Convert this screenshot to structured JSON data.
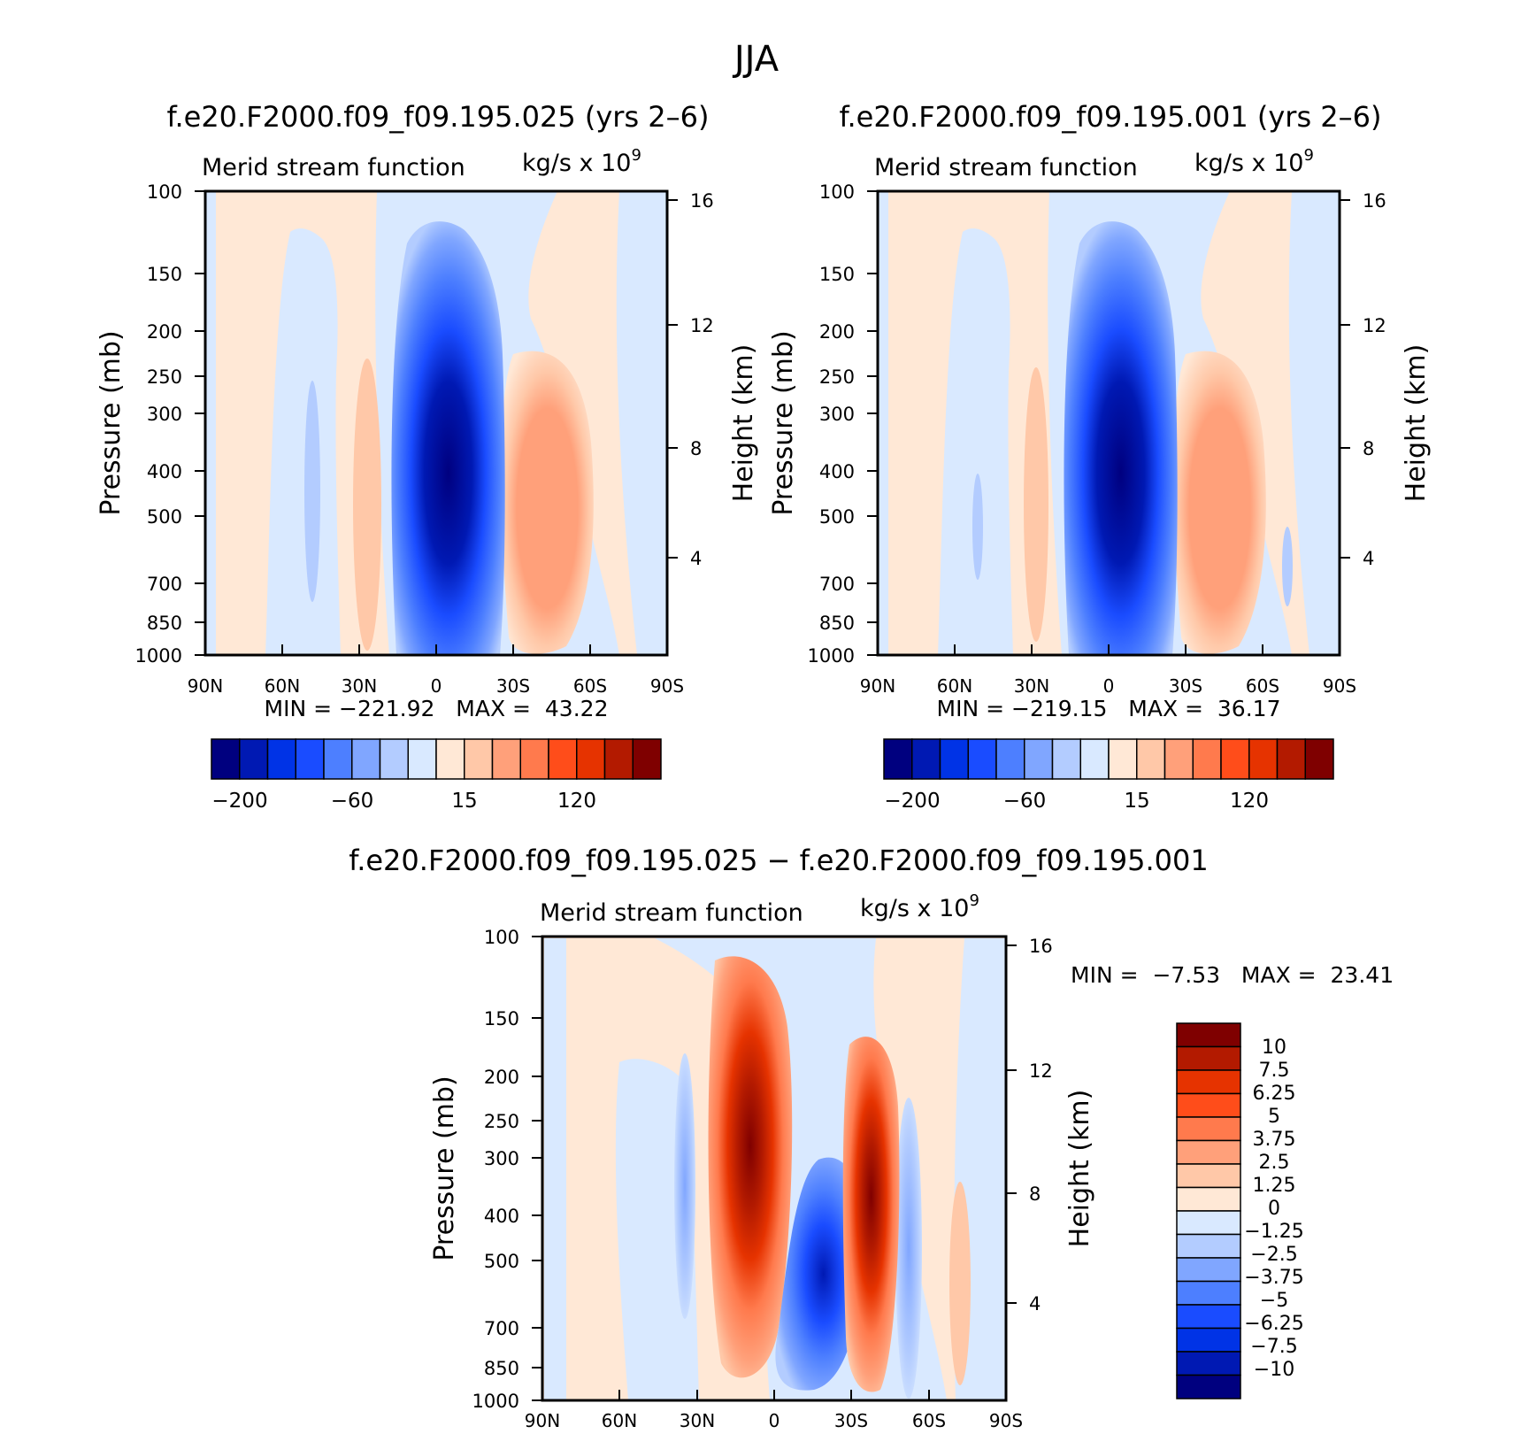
{
  "figure": {
    "title": "JJA"
  },
  "panels": [
    {
      "title": "f.e20.F2000.f09_f09.195.025 (yrs 2–6)",
      "var_label": "Merid stream function",
      "units_label": "kg/s x 10",
      "units_exponent": "9",
      "ylabel": "Pressure (mb)",
      "y2label": "Height (km)",
      "stats": {
        "min_label": "MIN =",
        "min": "−221.92",
        "max_label": "MAX =",
        "max": "43.22"
      }
    },
    {
      "title": "f.e20.F2000.f09_f09.195.001 (yrs 2–6)",
      "var_label": "Merid stream function",
      "units_label": "kg/s x 10",
      "units_exponent": "9",
      "ylabel": "Pressure (mb)",
      "y2label": "Height (km)",
      "stats": {
        "min_label": "MIN =",
        "min": "−219.15",
        "max_label": "MAX =",
        "max": "36.17"
      }
    },
    {
      "title": "f.e20.F2000.f09_f09.195.025 − f.e20.F2000.f09_f09.195.001",
      "var_label": "Merid stream function",
      "units_label": "kg/s x 10",
      "units_exponent": "9",
      "ylabel": "Pressure (mb)",
      "y2label": "Height (km)",
      "stats": {
        "min_label": "MIN =",
        "min": "−7.53",
        "max_label": "MAX =",
        "max": "23.41"
      }
    }
  ],
  "colors": {
    "levels16": [
      "#00007f",
      "#0019b3",
      "#0033e6",
      "#1a4cff",
      "#4d7fff",
      "#80a6ff",
      "#b3ccff",
      "#d9e9ff",
      "#ffe8d6",
      "#ffc8a8",
      "#ffa07a",
      "#ff7a4d",
      "#ff4d1a",
      "#e63300",
      "#b31a00",
      "#7f0000"
    ]
  },
  "chart_data": [
    {
      "type": "heatmap",
      "title": "f.e20.F2000.f09_f09.195.025 (yrs 2–6)",
      "xlabel": "",
      "ylabel": "Pressure (mb)",
      "y2label": "Height (km)",
      "x_ticks": [
        "90N",
        "60N",
        "30N",
        "0",
        "30S",
        "60S",
        "90S"
      ],
      "x_range": [
        90,
        -90
      ],
      "y_ticks": [
        100,
        150,
        200,
        250,
        300,
        400,
        500,
        700,
        850,
        1000
      ],
      "y_scale": "log",
      "y_range": [
        100,
        1000
      ],
      "y2_ticks": [
        4,
        8,
        12,
        16
      ],
      "min": -221.92,
      "max": 43.22,
      "colorbar_labels": [
        "−200",
        "−60",
        "15",
        "120"
      ],
      "cells": [
        {
          "lat": [
            58,
            40
          ],
          "p": [
            130,
            920
          ],
          "v": -20
        },
        {
          "lat": [
            15,
            -15
          ],
          "p": [
            118,
            980
          ],
          "v": -200
        },
        {
          "lat": [
            -20,
            -42
          ],
          "p": [
            200,
            940
          ],
          "v": 40
        },
        {
          "lat": [
            32,
            25
          ],
          "p": [
            250,
            930
          ],
          "v": 10
        },
        {
          "lat": [
            -70,
            -88
          ],
          "p": [
            100,
            1000
          ],
          "v": -10
        }
      ]
    },
    {
      "type": "heatmap",
      "title": "f.e20.F2000.f09_f09.195.001 (yrs 2–6)",
      "xlabel": "",
      "ylabel": "Pressure (mb)",
      "y2label": "Height (km)",
      "x_ticks": [
        "90N",
        "60N",
        "30N",
        "0",
        "30S",
        "60S",
        "90S"
      ],
      "x_range": [
        90,
        -90
      ],
      "y_ticks": [
        100,
        150,
        200,
        250,
        300,
        400,
        500,
        700,
        850,
        1000
      ],
      "y_scale": "log",
      "y_range": [
        100,
        1000
      ],
      "y2_ticks": [
        4,
        8,
        12,
        16
      ],
      "min": -219.15,
      "max": 36.17,
      "colorbar_labels": [
        "−200",
        "−60",
        "15",
        "120"
      ],
      "cells": [
        {
          "lat": [
            58,
            40
          ],
          "p": [
            130,
            920
          ],
          "v": -20
        },
        {
          "lat": [
            15,
            -15
          ],
          "p": [
            118,
            980
          ],
          "v": -200
        },
        {
          "lat": [
            -20,
            -42
          ],
          "p": [
            200,
            940
          ],
          "v": 35
        },
        {
          "lat": [
            32,
            25
          ],
          "p": [
            250,
            930
          ],
          "v": 10
        },
        {
          "lat": [
            -70,
            -88
          ],
          "p": [
            100,
            1000
          ],
          "v": -10
        }
      ]
    },
    {
      "type": "heatmap",
      "title": "f.e20.F2000.f09_f09.195.025 − f.e20.F2000.f09_f09.195.001",
      "xlabel": "",
      "ylabel": "Pressure (mb)",
      "y2label": "Height (km)",
      "x_ticks": [
        "90N",
        "60N",
        "30N",
        "0",
        "30S",
        "60S",
        "90S"
      ],
      "x_range": [
        90,
        -90
      ],
      "y_ticks": [
        100,
        150,
        200,
        250,
        300,
        400,
        500,
        700,
        850,
        1000
      ],
      "y_scale": "log",
      "y_range": [
        100,
        1000
      ],
      "y2_ticks": [
        4,
        8,
        12,
        16
      ],
      "min": -7.53,
      "max": 23.41,
      "colorbar_labels": [
        "10",
        "7.5",
        "6.25",
        "5",
        "3.75",
        "2.5",
        "1.25",
        "0",
        "−1.25",
        "−2.5",
        "−3.75",
        "−5",
        "−6.25",
        "−7.5",
        "−10"
      ],
      "cells": [
        {
          "lat": [
            20,
            5
          ],
          "p": [
            130,
            980
          ],
          "v": 10
        },
        {
          "lat": [
            -5,
            -22
          ],
          "p": [
            300,
            980
          ],
          "v": -7.5
        },
        {
          "lat": [
            -28,
            -38
          ],
          "p": [
            180,
            990
          ],
          "v": 10
        },
        {
          "lat": [
            35,
            28
          ],
          "p": [
            170,
            650
          ],
          "v": -2.5
        },
        {
          "lat": [
            -50,
            -54
          ],
          "p": [
            250,
            990
          ],
          "v": -2.5
        },
        {
          "lat": [
            -68,
            -74
          ],
          "p": [
            350,
            990
          ],
          "v": 2.5
        }
      ]
    }
  ]
}
